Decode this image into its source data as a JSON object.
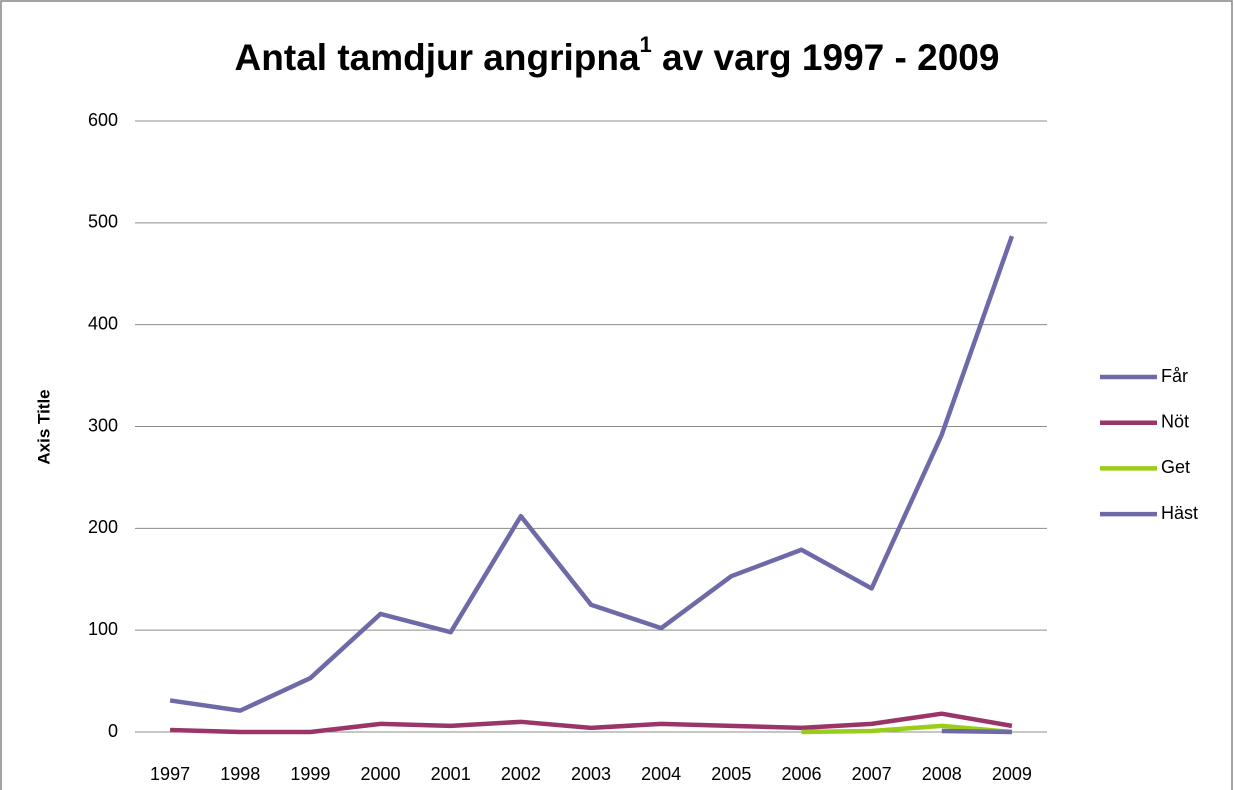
{
  "chart_data": {
    "type": "line",
    "title": [
      "Antal tamdjur angripna",
      "1",
      " av varg 1997 - 2009"
    ],
    "y_label": "Axis Title",
    "categories": [
      "1997",
      "1998",
      "1999",
      "2000",
      "2001",
      "2002",
      "2003",
      "2004",
      "2005",
      "2006",
      "2007",
      "2008",
      "2009"
    ],
    "series": [
      {
        "name": "Får",
        "color": "#6e6aa8",
        "values": [
          31,
          21,
          53,
          116,
          98,
          212,
          125,
          102,
          153,
          179,
          141,
          292,
          487
        ]
      },
      {
        "name": "Nöt",
        "color": "#9b3568",
        "values": [
          2,
          0,
          0,
          8,
          6,
          10,
          4,
          8,
          6,
          4,
          8,
          18,
          6
        ]
      },
      {
        "name": "Get",
        "color": "#9acd1a",
        "values": [
          null,
          null,
          null,
          null,
          null,
          null,
          null,
          null,
          null,
          0,
          1,
          6,
          0
        ]
      },
      {
        "name": "Häst",
        "color": "#6e6aa8",
        "values": [
          null,
          null,
          null,
          null,
          null,
          null,
          null,
          null,
          null,
          null,
          null,
          1,
          0
        ]
      }
    ],
    "ylim": [
      0,
      600
    ],
    "yticks": [
      0,
      100,
      200,
      300,
      400,
      500,
      600
    ],
    "grid": true,
    "legend": "right"
  }
}
